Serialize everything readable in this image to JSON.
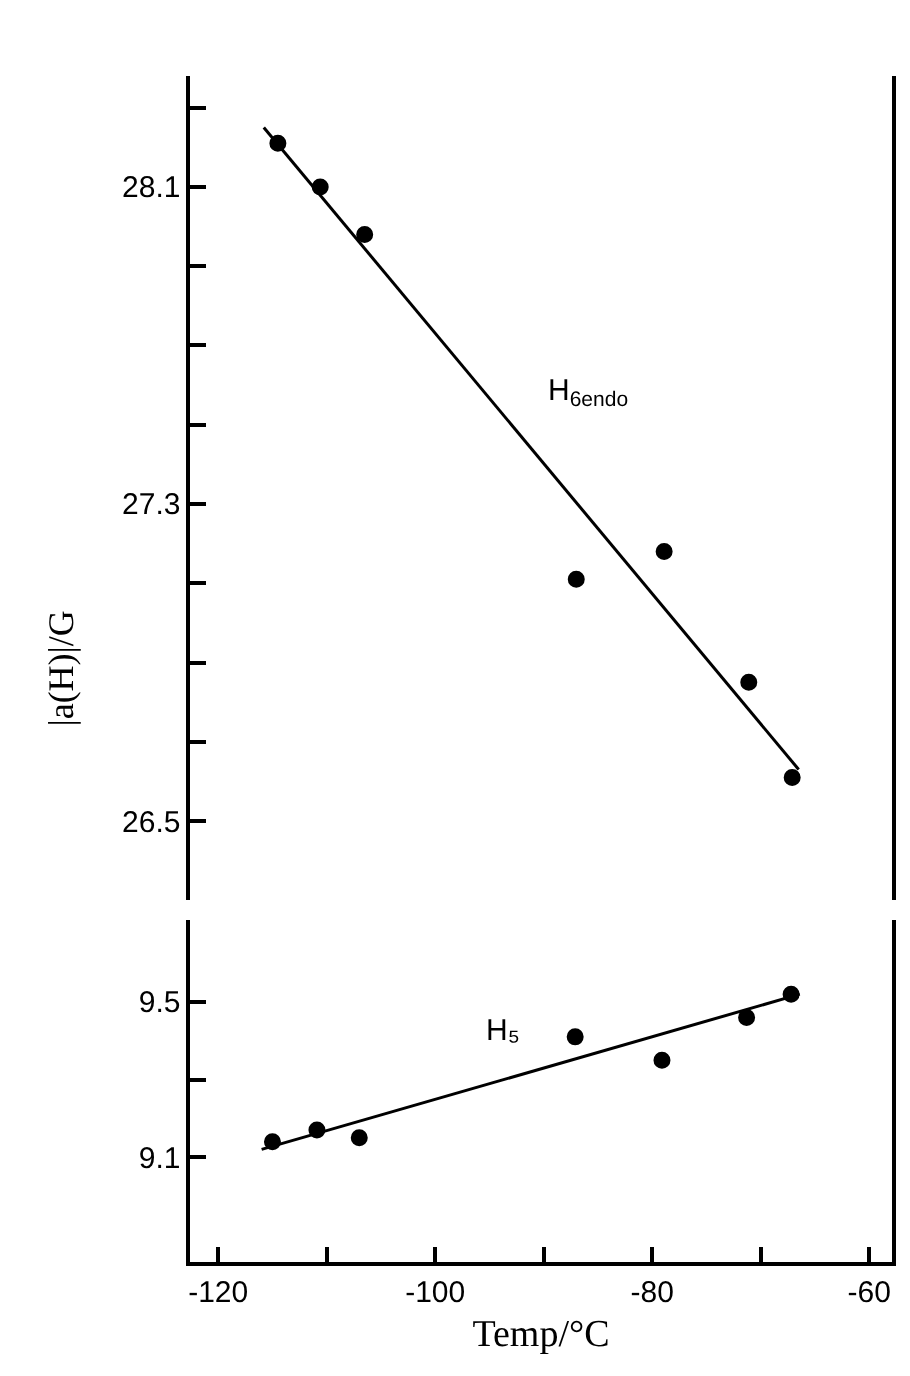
{
  "chart_data": [
    {
      "type": "scatter",
      "ylabel": "|a(H)|/G",
      "xlim": [
        -122.6,
        -57.9
      ],
      "ylim": [
        26.3,
        28.38
      ],
      "yticks": [
        {
          "value": 26.5,
          "label": "26.5"
        },
        {
          "value": 26.7,
          "label": null
        },
        {
          "value": 26.9,
          "label": null
        },
        {
          "value": 27.1,
          "label": null
        },
        {
          "value": 27.3,
          "label": "27.3"
        },
        {
          "value": 27.5,
          "label": null
        },
        {
          "value": 27.7,
          "label": null
        },
        {
          "value": 27.9,
          "label": null
        },
        {
          "value": 28.1,
          "label": "28.1"
        },
        {
          "value": 28.3,
          "label": null
        }
      ],
      "tick_labels": "y",
      "legend": false,
      "series": [
        {
          "name": "H$_{6endo}$",
          "marker": "circle",
          "color": "#000000",
          "x": [
            -114.5,
            -110.6,
            -106.5,
            -87.0,
            -78.9,
            -71.1,
            -67.1
          ],
          "values": [
            28.21,
            28.1,
            27.98,
            27.11,
            27.18,
            26.85,
            26.61
          ]
        },
        {
          "type": "line",
          "marker": "none",
          "color": "#000000",
          "line_style": "solid",
          "x": [
            -115.8,
            -66.5
          ],
          "values": [
            28.25,
            26.63
          ]
        }
      ]
    },
    {
      "type": "scatter",
      "xlabel": "Temp/°C",
      "xlim": [
        -122.6,
        -57.9
      ],
      "ylim": [
        8.83,
        9.71
      ],
      "xticks": [
        -120,
        {
          "value": -110,
          "label": null
        },
        -100,
        {
          "value": -90,
          "label": null
        },
        -80,
        {
          "value": -70,
          "label": null
        },
        -60
      ],
      "yticks": [
        {
          "value": 9.1,
          "label": "9.1"
        },
        {
          "value": 9.3,
          "label": null
        },
        {
          "value": 9.5,
          "label": "9.5"
        }
      ],
      "legend": false,
      "series": [
        {
          "name": "H₅",
          "marker": "circle",
          "color": "#000000",
          "x": [
            -115.0,
            -110.9,
            -107.0,
            -87.1,
            -79.1,
            -71.3,
            -67.2
          ],
          "values": [
            9.14,
            9.17,
            9.15,
            9.41,
            9.35,
            9.46,
            9.52
          ]
        },
        {
          "type": "line",
          "marker": "none",
          "color": "#000000",
          "line_style": "solid",
          "x": [
            -116.0,
            -66.4
          ],
          "values": [
            9.12,
            9.52
          ]
        }
      ]
    }
  ]
}
